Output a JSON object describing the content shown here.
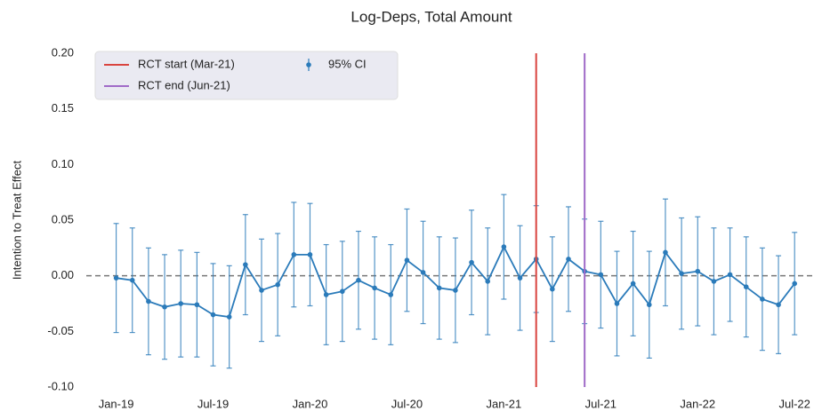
{
  "chart_data": {
    "type": "errorbar_line",
    "title": "Log-Deps, Total Amount",
    "y_label": "Intention to Treat Effect",
    "categories": [
      "Jan-19",
      null,
      null,
      null,
      null,
      null,
      "Jul-19",
      null,
      null,
      null,
      null,
      null,
      "Jan-20",
      null,
      null,
      null,
      null,
      null,
      "Jul-20",
      null,
      null,
      null,
      null,
      null,
      "Jan-21",
      null,
      null,
      null,
      null,
      null,
      "Jul-21",
      null,
      null,
      null,
      null,
      null,
      "Jan-22",
      null,
      null,
      null,
      null,
      null,
      "Jul-22"
    ],
    "series": [
      {
        "name": "95% CI",
        "color": "#2b7bba",
        "values": [
          -0.002,
          -0.004,
          -0.023,
          -0.028,
          -0.025,
          -0.026,
          -0.035,
          -0.037,
          0.01,
          -0.013,
          -0.008,
          0.019,
          0.019,
          -0.017,
          -0.014,
          -0.004,
          -0.011,
          -0.017,
          0.014,
          0.003,
          -0.011,
          -0.013,
          0.012,
          -0.005,
          0.026,
          -0.002,
          0.015,
          -0.012,
          0.015,
          0.004,
          0.001,
          -0.025,
          -0.007,
          -0.026,
          0.021,
          0.002,
          0.004,
          -0.005,
          0.001,
          -0.01,
          -0.021,
          -0.026,
          -0.007
        ],
        "errors": [
          0.049,
          0.047,
          0.048,
          0.047,
          0.048,
          0.047,
          0.046,
          0.046,
          0.045,
          0.046,
          0.046,
          0.047,
          0.046,
          0.045,
          0.045,
          0.044,
          0.046,
          0.045,
          0.046,
          0.046,
          0.046,
          0.047,
          0.047,
          0.048,
          0.047,
          0.047,
          0.048,
          0.047,
          0.047,
          0.047,
          0.048,
          0.047,
          0.047,
          0.048,
          0.048,
          0.05,
          0.049,
          0.048,
          0.042,
          0.045,
          0.046,
          0.044,
          0.046
        ]
      }
    ],
    "vlines": [
      {
        "label": "RCT start (Mar-21)",
        "position": 26,
        "color": "#d9443f"
      },
      {
        "label": "RCT end  (Jun-21)",
        "position": 29,
        "color": "#a06ac8"
      }
    ],
    "zero_line": true,
    "xlim": [
      -1.85,
      43.2
    ],
    "ylim": [
      -0.1,
      0.2
    ],
    "yticks": [
      {
        "value": -0.1,
        "label": "-0.10"
      },
      -0.05,
      {
        "value": 0,
        "label": "0.00"
      },
      0.05,
      {
        "value": 0.1,
        "label": "0.10"
      },
      0.15,
      {
        "value": 0.2,
        "label": "0.20"
      }
    ],
    "legend": "upper left"
  }
}
